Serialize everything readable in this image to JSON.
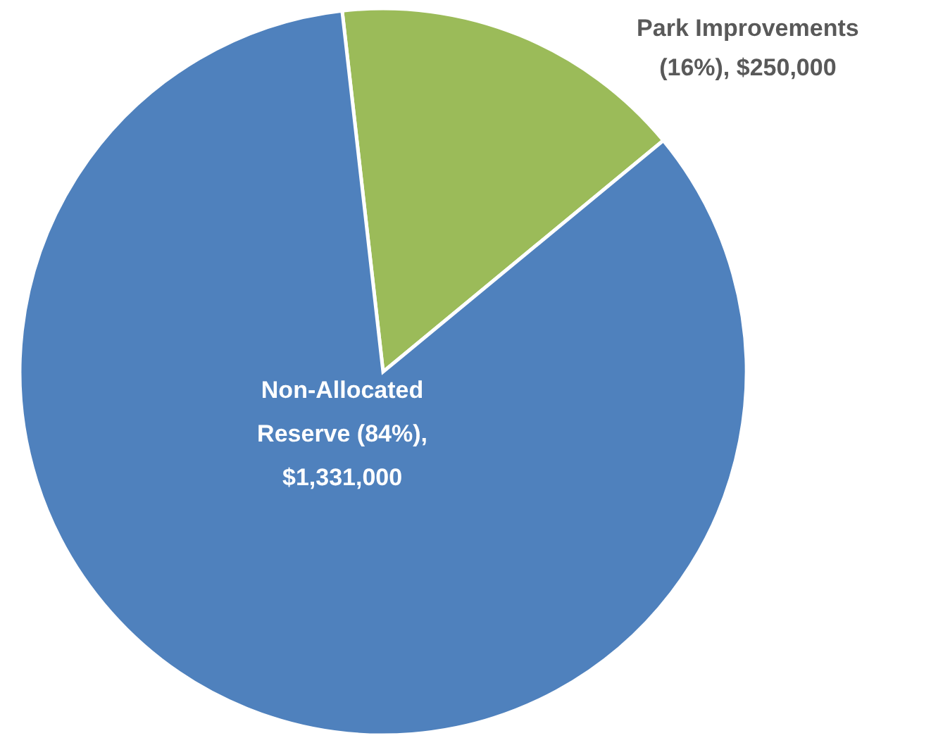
{
  "chart_data": {
    "type": "pie",
    "categories": [
      "Park Improvements",
      "Non-Allocated Reserve"
    ],
    "values": [
      250000,
      1331000
    ],
    "colors": [
      "#9bbb59",
      "#4f81bd"
    ],
    "value_labels": [
      "(16%), $250,000",
      "(84%), $1,331,000"
    ]
  }
}
